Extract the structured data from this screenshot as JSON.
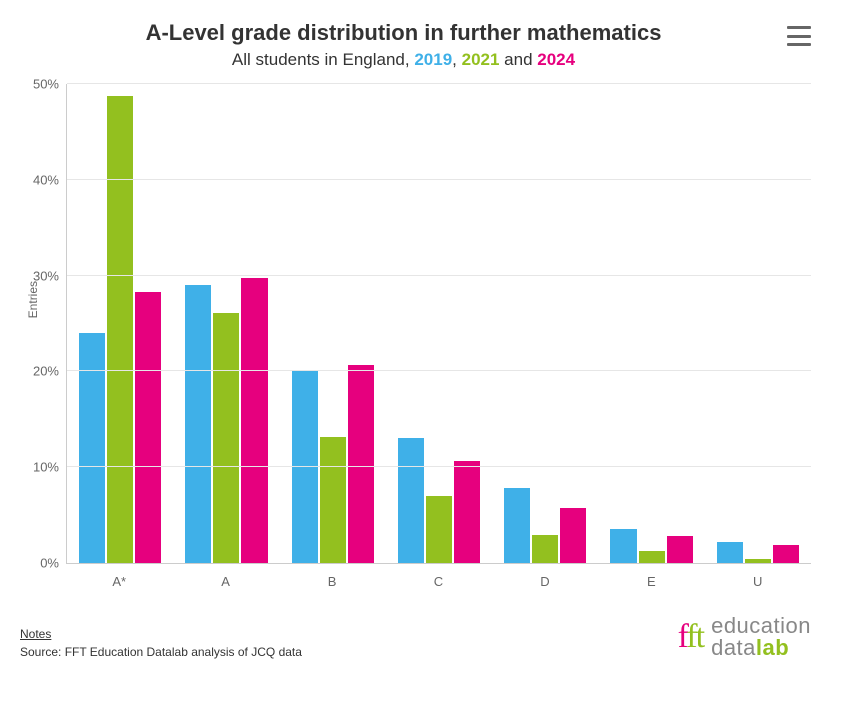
{
  "title": "A-Level grade distribution in further mathematics",
  "subtitle_prefix": "All students in England, ",
  "subtitle_and": " and ",
  "years": [
    {
      "label": "2019",
      "color": "#3fb0e8"
    },
    {
      "label": "2021",
      "color": "#93c01f"
    },
    {
      "label": "2024",
      "color": "#e6007e"
    }
  ],
  "ylabel": "Entries",
  "ylim_max": 50,
  "ytick_step": 10,
  "yticks": [
    "0%",
    "10%",
    "20%",
    "30%",
    "40%",
    "50%"
  ],
  "categories": [
    "A*",
    "A",
    "B",
    "C",
    "D",
    "E",
    "U"
  ],
  "series": [
    {
      "name": "2019",
      "color": "#3fb0e8",
      "values": [
        24.0,
        29.0,
        20.0,
        13.1,
        7.8,
        3.6,
        2.2
      ]
    },
    {
      "name": "2021",
      "color": "#93c01f",
      "values": [
        48.8,
        26.1,
        13.2,
        7.0,
        2.9,
        1.3,
        0.4
      ]
    },
    {
      "name": "2024",
      "color": "#e6007e",
      "values": [
        28.3,
        29.8,
        20.7,
        10.7,
        5.7,
        2.8,
        1.9
      ]
    }
  ],
  "grid_color": "#e6e6e6",
  "axis_color": "#cccccc",
  "tick_font_color": "#666666",
  "background_color": "#ffffff",
  "notes_label": "Notes",
  "source_text": "Source: FFT Education Datalab analysis of JCQ data",
  "logo": {
    "line1": "education",
    "line2_plain": "data",
    "line2_bold": "lab"
  }
}
